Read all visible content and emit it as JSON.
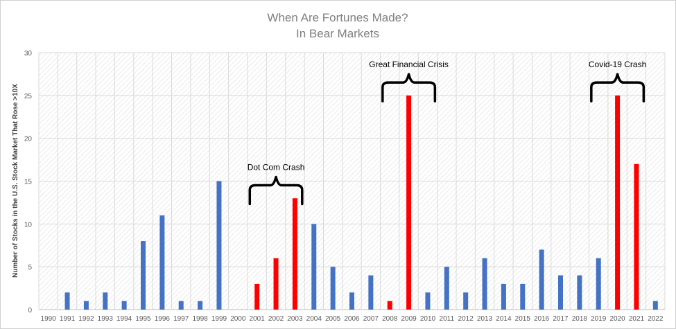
{
  "chart_data": {
    "type": "bar",
    "title": "When Are Fortunes Made?",
    "subtitle": "In Bear Markets",
    "xlabel": "",
    "ylabel": "Number of Stocks in the U.S. Stock Market That Rose >10X",
    "ylim": [
      0,
      30
    ],
    "yticks": [
      0,
      5,
      10,
      15,
      20,
      25,
      30
    ],
    "grid": true,
    "categories": [
      "1990",
      "1991",
      "1992",
      "1993",
      "1994",
      "1995",
      "1996",
      "1997",
      "1998",
      "1999",
      "2000",
      "2001",
      "2002",
      "2003",
      "2004",
      "2005",
      "2006",
      "2007",
      "2008",
      "2009",
      "2010",
      "2011",
      "2012",
      "2013",
      "2014",
      "2015",
      "2016",
      "2017",
      "2018",
      "2019",
      "2020",
      "2021",
      "2022"
    ],
    "values": [
      0,
      2,
      1,
      2,
      1,
      8,
      11,
      1,
      1,
      15,
      0,
      3,
      6,
      13,
      10,
      5,
      2,
      4,
      1,
      25,
      2,
      5,
      2,
      6,
      3,
      3,
      7,
      4,
      4,
      6,
      25,
      17,
      1
    ],
    "highlighted": [
      "2001",
      "2002",
      "2003",
      "2008",
      "2009",
      "2020",
      "2021"
    ],
    "colors": {
      "normal": "#4472c4",
      "highlight": "#ff0000"
    },
    "annotations": [
      {
        "text": "Dot Com Crash",
        "from": "2001",
        "to": "2003",
        "y": 15
      },
      {
        "text": "Great Financial Crisis",
        "from": "2008",
        "to": "2010",
        "y": 27
      },
      {
        "text": "Covid-19 Crash",
        "from": "2019",
        "to": "2021",
        "y": 27
      }
    ]
  }
}
